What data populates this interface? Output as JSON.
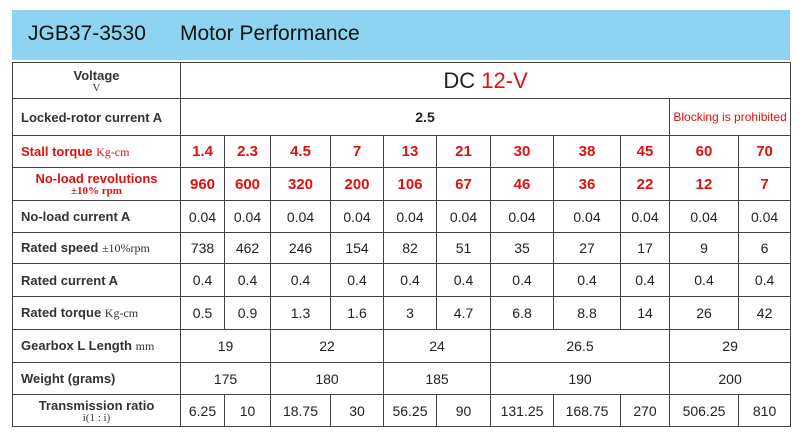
{
  "header": {
    "model": "JGB37-3530",
    "title": "Motor Performance"
  },
  "table": {
    "rows": [
      {
        "label": "Voltage",
        "unit": "V",
        "cells": [
          "DC",
          "12-V"
        ]
      },
      {
        "label": "Locked-rotor current A",
        "cells": [
          "2.5",
          "Blocking is prohibited"
        ]
      },
      {
        "label": "Stall torque",
        "unit": "Kg-cm",
        "cells": [
          "1.4",
          "2.3",
          "4.5",
          "7",
          "13",
          "21",
          "30",
          "38",
          "45",
          "60",
          "70"
        ]
      },
      {
        "label": "No-load revolutions",
        "unit": "±10% rpm",
        "cells": [
          "960",
          "600",
          "320",
          "200",
          "106",
          "67",
          "46",
          "36",
          "22",
          "12",
          "7"
        ]
      },
      {
        "label": "No-load current A",
        "cells": [
          "0.04",
          "0.04",
          "0.04",
          "0.04",
          "0.04",
          "0.04",
          "0.04",
          "0.04",
          "0.04",
          "0.04",
          "0.04"
        ]
      },
      {
        "label": "Rated speed",
        "unit": "±10%rpm",
        "cells": [
          "738",
          "462",
          "246",
          "154",
          "82",
          "51",
          "35",
          "27",
          "17",
          "9",
          "6"
        ]
      },
      {
        "label": "Rated current A",
        "cells": [
          "0.4",
          "0.4",
          "0.4",
          "0.4",
          "0.4",
          "0.4",
          "0.4",
          "0.4",
          "0.4",
          "0.4",
          "0.4"
        ]
      },
      {
        "label": "Rated torque",
        "unit": "Kg-cm",
        "cells": [
          "0.5",
          "0.9",
          "1.3",
          "1.6",
          "3",
          "4.7",
          "6.8",
          "8.8",
          "14",
          "26",
          "42"
        ]
      },
      {
        "label": "Gearbox L Length",
        "unit": "mm",
        "cells": [
          "19",
          "22",
          "24",
          "26.5",
          "29"
        ]
      },
      {
        "label": "Weight (grams)",
        "cells": [
          "175",
          "180",
          "185",
          "190",
          "200"
        ]
      },
      {
        "label": "Transmission ratio",
        "unit": "i(1 : i)",
        "cells": [
          "6.25",
          "10",
          "18.75",
          "30",
          "56.25",
          "90",
          "131.25",
          "168.75",
          "270",
          "506.25",
          "810"
        ]
      }
    ]
  }
}
